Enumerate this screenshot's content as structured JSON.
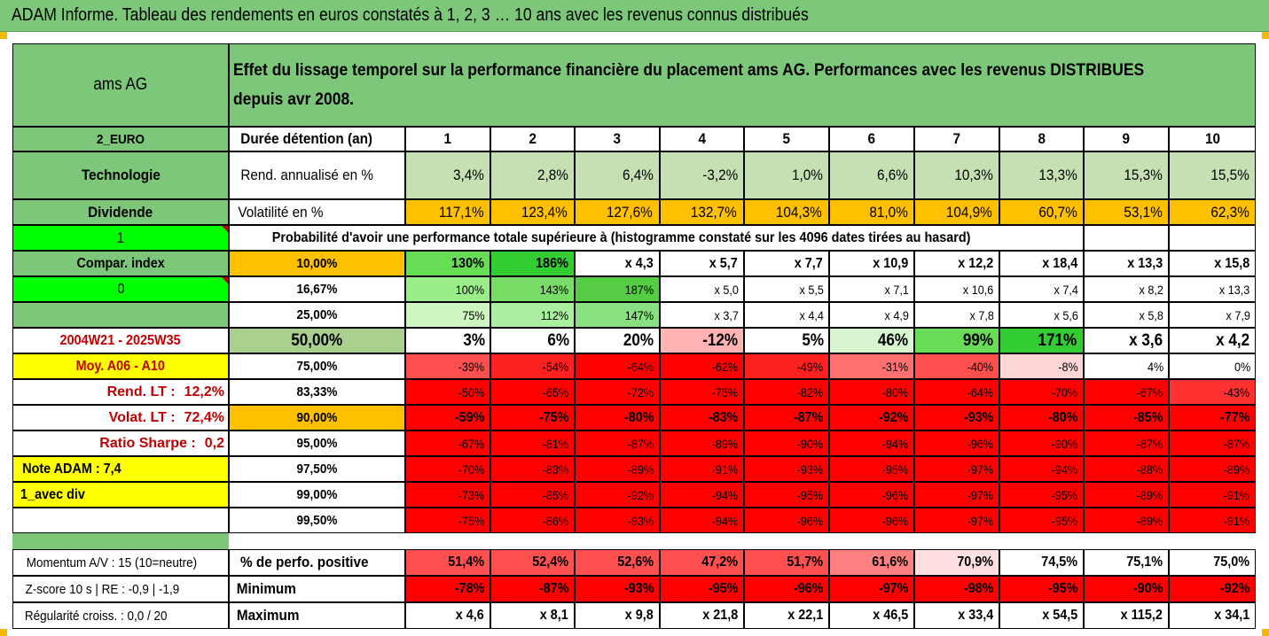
{
  "title": "ADAM Informe. Tableau des rendements en euros constatés à 1, 2, 3 … 10 ans avec les revenus connus distribués",
  "colors": {
    "header_green": "#7dc77a",
    "light_green": "#c6e0b4",
    "orange": "#ffc000",
    "yellow": "#ffff00",
    "red": "#ff0000",
    "bright_green": "#00ff00"
  },
  "header": {
    "name": "ams AG",
    "description": "Effet du lissage temporel sur la performance financière du placement ams AG. Performances avec les revenus DISTRIBUES depuis avr 2008."
  },
  "left": {
    "currency": "2_EURO",
    "sector": "Technologie",
    "dividend": "Dividende",
    "flag1": "1",
    "compar": "Compar. index",
    "flag0": "0",
    "period": "2004W21 - 2025W35",
    "moy": "Moy. A06 - A10",
    "rend_lt_label": "Rend. LT :",
    "rend_lt_value": "12,2%",
    "volat_lt_label": "Volat. LT :",
    "volat_lt_value": "72,4%",
    "sharpe_label": "Ratio Sharpe :",
    "sharpe_value": "0,2",
    "note": "Note ADAM : 7,4",
    "avec_div": "1_avec div"
  },
  "duration_label": "Durée détention (an)",
  "years": [
    "1",
    "2",
    "3",
    "4",
    "5",
    "6",
    "7",
    "8",
    "9",
    "10"
  ],
  "rend_label": "Rend. annualisé en %",
  "rend": [
    "3,4%",
    "2,8%",
    "6,4%",
    "-3,2%",
    "1,0%",
    "6,6%",
    "10,3%",
    "13,3%",
    "15,3%",
    "15,5%"
  ],
  "vol_label": "Volatilité en %",
  "vol": [
    "117,1%",
    "123,4%",
    "127,6%",
    "132,7%",
    "104,3%",
    "81,0%",
    "104,9%",
    "60,7%",
    "53,1%",
    "62,3%"
  ],
  "prob_label": "Probabilité d'avoir une performance totale supérieure à (histogramme constaté sur les 4096 dates tirées au hasard)",
  "quantiles": [
    {
      "label": "10,00%",
      "values": [
        "130%",
        "186%",
        "x 4,3",
        "x 5,7",
        "x 7,7",
        "x 10,9",
        "x 12,2",
        "x 18,4",
        "x 13,3",
        "x 15,8"
      ]
    },
    {
      "label": "16,67%",
      "values": [
        "100%",
        "143%",
        "187%",
        "x 5,0",
        "x 5,5",
        "x 7,1",
        "x 10,6",
        "x 7,4",
        "x 8,2",
        "x 13,3"
      ]
    },
    {
      "label": "25,00%",
      "values": [
        "75%",
        "112%",
        "147%",
        "x 3,7",
        "x 4,4",
        "x 4,9",
        "x 7,8",
        "x 5,6",
        "x 5,8",
        "x 7,9"
      ]
    },
    {
      "label": "50,00%",
      "values": [
        "3%",
        "6%",
        "20%",
        "-12%",
        "5%",
        "46%",
        "99%",
        "171%",
        "x 3,6",
        "x 4,2"
      ]
    },
    {
      "label": "75,00%",
      "values": [
        "-39%",
        "-54%",
        "-64%",
        "-62%",
        "-49%",
        "-31%",
        "-40%",
        "-8%",
        "4%",
        "0%"
      ]
    },
    {
      "label": "83,33%",
      "values": [
        "-50%",
        "-65%",
        "-72%",
        "-75%",
        "-82%",
        "-80%",
        "-64%",
        "-70%",
        "-67%",
        "-43%"
      ]
    },
    {
      "label": "90,00%",
      "values": [
        "-59%",
        "-75%",
        "-80%",
        "-83%",
        "-87%",
        "-92%",
        "-93%",
        "-80%",
        "-85%",
        "-77%"
      ]
    },
    {
      "label": "95,00%",
      "values": [
        "-67%",
        "-81%",
        "-87%",
        "-89%",
        "-90%",
        "-94%",
        "-96%",
        "-90%",
        "-87%",
        "-87%"
      ]
    },
    {
      "label": "97,50%",
      "values": [
        "-70%",
        "-83%",
        "-89%",
        "-91%",
        "-93%",
        "-95%",
        "-97%",
        "-94%",
        "-88%",
        "-89%"
      ]
    },
    {
      "label": "99,00%",
      "values": [
        "-73%",
        "-85%",
        "-92%",
        "-94%",
        "-95%",
        "-96%",
        "-97%",
        "-95%",
        "-89%",
        "-91%"
      ]
    },
    {
      "label": "99,50%",
      "values": [
        "-75%",
        "-86%",
        "-93%",
        "-94%",
        "-96%",
        "-96%",
        "-97%",
        "-95%",
        "-89%",
        "-91%"
      ]
    }
  ],
  "bottom": [
    {
      "left": "Momentum A/V : 15 (10=neutre)",
      "label": "% de perfo. positive",
      "values": [
        "51,4%",
        "52,4%",
        "52,6%",
        "47,2%",
        "51,7%",
        "61,6%",
        "70,9%",
        "74,5%",
        "75,1%",
        "75,0%"
      ]
    },
    {
      "left": "Z-score 10 s | RE : -0,9 | -1,9",
      "label": "Minimum",
      "values": [
        "-78%",
        "-87%",
        "-93%",
        "-95%",
        "-96%",
        "-97%",
        "-98%",
        "-95%",
        "-90%",
        "-92%"
      ]
    },
    {
      "left": "Régularité croiss. : 0,0 / 20",
      "label": "Maximum",
      "values": [
        "x 4,6",
        "x 8,1",
        "x 9,8",
        "x 21,8",
        "x 22,1",
        "x 46,5",
        "x 33,4",
        "x 54,5",
        "x 115,2",
        "x 34,1"
      ]
    }
  ]
}
